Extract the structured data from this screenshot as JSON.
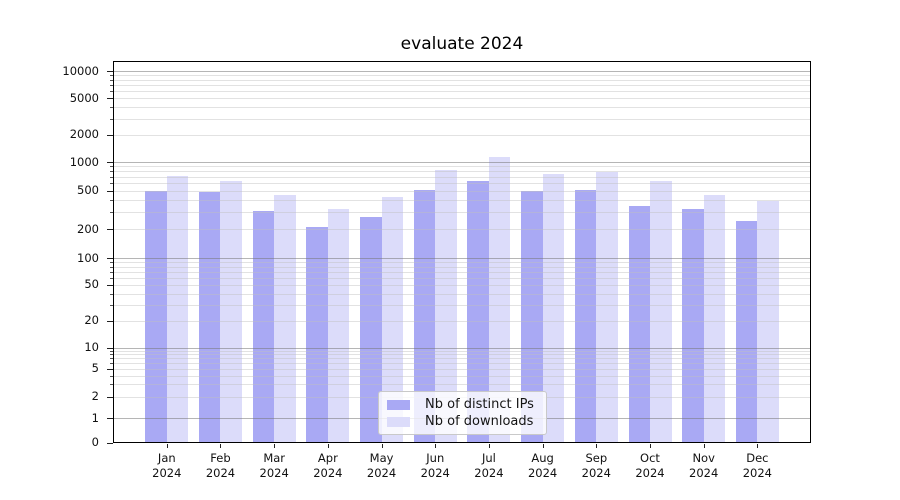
{
  "title": "evaluate 2024",
  "legend": {
    "items": [
      {
        "label": "Nb of distinct IPs",
        "color": "#a9a9f4"
      },
      {
        "label": "Nb of downloads",
        "color": "#dcdcfa"
      }
    ],
    "position": "lower center"
  },
  "chart_data": {
    "type": "bar",
    "title": "evaluate 2024",
    "categories": [
      "Jan 2024",
      "Feb 2024",
      "Mar 2024",
      "Apr 2024",
      "May 2024",
      "Jun 2024",
      "Jul 2024",
      "Aug 2024",
      "Sep 2024",
      "Oct 2024",
      "Nov 2024",
      "Dec 2024"
    ],
    "series": [
      {
        "name": "Nb of distinct IPs",
        "color": "#a9a9f4",
        "values": [
          500,
          490,
          310,
          210,
          265,
          515,
          630,
          495,
          505,
          345,
          325,
          240
        ]
      },
      {
        "name": "Nb of downloads",
        "color": "#dcdcfa",
        "values": [
          720,
          640,
          455,
          325,
          430,
          830,
          1130,
          750,
          795,
          640,
          455,
          390
        ]
      }
    ],
    "xlabel": "",
    "ylabel": "",
    "yscale": "symlog",
    "yticks": [
      0,
      1,
      2,
      5,
      10,
      20,
      50,
      100,
      200,
      500,
      1000,
      2000,
      5000,
      10000
    ],
    "ylim": [
      0,
      12500
    ],
    "grid": true,
    "grid_major_color": "#b4b4b4",
    "grid_minor_color": "#e8e8e8",
    "legend_position": "lower center"
  }
}
